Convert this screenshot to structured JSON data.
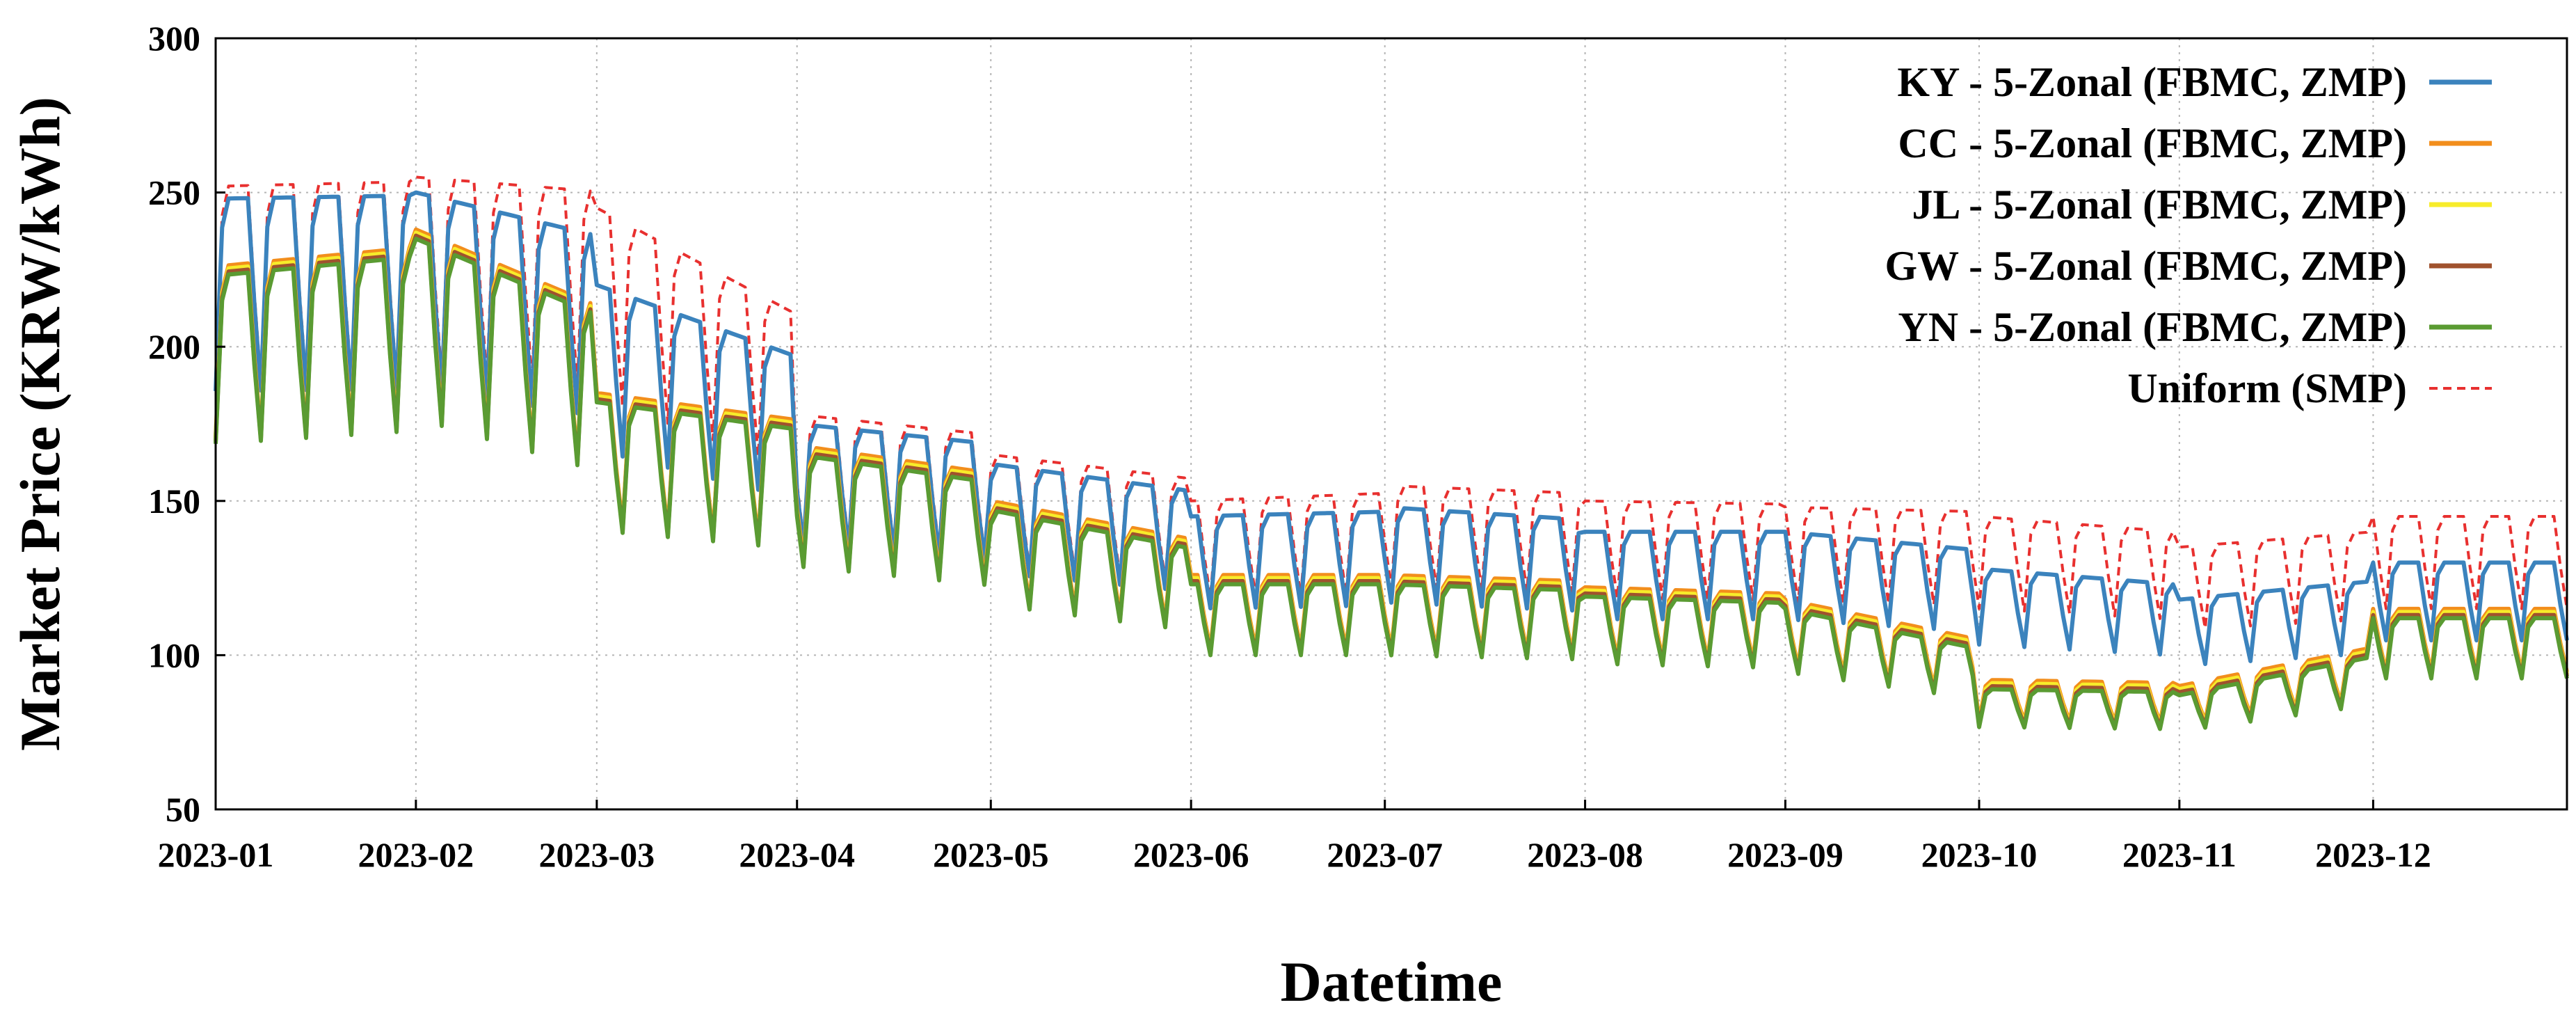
{
  "chart_data": {
    "type": "line",
    "title": "",
    "xlabel": "Datetime",
    "ylabel": "Market Price (KRW/kWh)",
    "ylim": [
      50,
      300
    ],
    "yticks": [
      50,
      100,
      150,
      200,
      250,
      300
    ],
    "xlim": [
      "2023-01-01",
      "2023-12-31"
    ],
    "xticks": [
      "2023-01",
      "2023-02",
      "2023-03",
      "2023-04",
      "2023-05",
      "2023-06",
      "2023-07",
      "2023-08",
      "2023-09",
      "2023-10",
      "2023-11",
      "2023-12"
    ],
    "grid": true,
    "legend_position": "top-right",
    "monthly_levels": {
      "KY": [
        248,
        250,
        220,
        175,
        162,
        145,
        148,
        140,
        140,
        128,
        118,
        130
      ],
      "CC": [
        226,
        238,
        185,
        168,
        150,
        126,
        126,
        122,
        118,
        92,
        90,
        115
      ],
      "JL": [
        225,
        237,
        184,
        167,
        149,
        125,
        125,
        121,
        117,
        91,
        89,
        114
      ],
      "GW": [
        224,
        236,
        183,
        166,
        148,
        124,
        124,
        120,
        116,
        90,
        88,
        113
      ],
      "YN": [
        223,
        235,
        182,
        165,
        147,
        123,
        123,
        119,
        115,
        89,
        87,
        112
      ],
      "Uniform": [
        252,
        255,
        245,
        178,
        165,
        150,
        155,
        150,
        148,
        145,
        135,
        145
      ]
    },
    "weekly_dip_fraction": 0.35,
    "series": [
      {
        "key": "KY",
        "name": "KY - 5-Zonal (FBMC, ZMP)",
        "color": "#3b83bd",
        "dash": false
      },
      {
        "key": "CC",
        "name": "CC - 5-Zonal (FBMC, ZMP)",
        "color": "#f28e1c",
        "dash": false
      },
      {
        "key": "JL",
        "name": "JL - 5-Zonal (FBMC, ZMP)",
        "color": "#f7ec2a",
        "dash": false
      },
      {
        "key": "GW",
        "name": "GW - 5-Zonal (FBMC, ZMP)",
        "color": "#a0522d",
        "dash": false
      },
      {
        "key": "YN",
        "name": "YN - 5-Zonal (FBMC, ZMP)",
        "color": "#5a9b32",
        "dash": false
      },
      {
        "key": "Uniform",
        "name": "Uniform (SMP)",
        "color": "#e8302f",
        "dash": true
      }
    ]
  }
}
